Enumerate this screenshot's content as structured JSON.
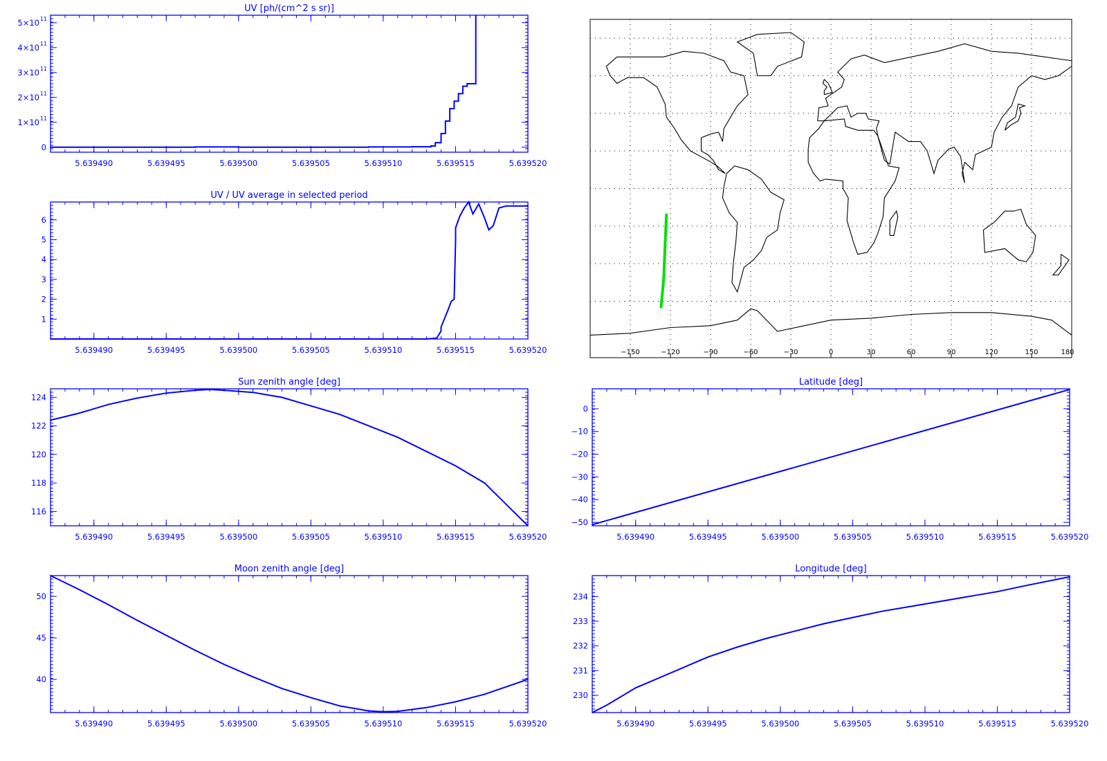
{
  "colors": {
    "plot": "#0000ff",
    "map": "#000000",
    "track": "#00e000",
    "background": "#ffffff"
  },
  "x_tick_labels": [
    "5.639490",
    "5.639495",
    "5.639500",
    "5.639505",
    "5.639510",
    "5.639515",
    "5.639520"
  ],
  "chart_data": [
    {
      "id": "uv",
      "type": "line",
      "title": "UV [ph/(cm^2 s sr)]",
      "xlabel": "",
      "ylabel": "",
      "xlim": [
        5.639487,
        5.63952
      ],
      "ylim": [
        -20000000000.0,
        530000000000.0
      ],
      "yticks": [
        {
          "v": 0,
          "label": "0"
        },
        {
          "v": 100000000000.0,
          "label": "1×10",
          "exp": "11"
        },
        {
          "v": 200000000000.0,
          "label": "2×10",
          "exp": "11"
        },
        {
          "v": 300000000000.0,
          "label": "3×10",
          "exp": "11"
        },
        {
          "v": 400000000000.0,
          "label": "4×10",
          "exp": "11"
        },
        {
          "v": 500000000000.0,
          "label": "5×10",
          "exp": "11"
        }
      ],
      "series": [
        {
          "step": true,
          "points": [
            [
              5.639487,
              0
            ],
            [
              5.639497,
              1000000000.0
            ],
            [
              5.6395,
              0
            ],
            [
              5.639509,
              1000000000.0
            ],
            [
              5.639512,
              2000000000.0
            ],
            [
              5.6395133,
              5000000000.0
            ],
            [
              5.6395136,
              18000000000.0
            ],
            [
              5.639514,
              55000000000.0
            ],
            [
              5.6395143,
              105000000000.0
            ],
            [
              5.6395146,
              155000000000.0
            ],
            [
              5.6395149,
              185000000000.0
            ],
            [
              5.6395152,
              215000000000.0
            ],
            [
              5.6395155,
              245000000000.0
            ],
            [
              5.6395158,
              255000000000.0
            ],
            [
              5.6395164,
              530000000000.0
            ]
          ]
        }
      ]
    },
    {
      "id": "uv-ratio",
      "type": "line",
      "title": "UV / UV average in selected period",
      "xlabel": "",
      "ylabel": "",
      "xlim": [
        5.639487,
        5.63952
      ],
      "ylim": [
        0,
        6.9
      ],
      "yticks": [
        {
          "v": 1,
          "label": "1"
        },
        {
          "v": 2,
          "label": "2"
        },
        {
          "v": 3,
          "label": "3"
        },
        {
          "v": 4,
          "label": "4"
        },
        {
          "v": 5,
          "label": "5"
        },
        {
          "v": 6,
          "label": "6"
        }
      ],
      "series": [
        {
          "step": false,
          "points": [
            [
              5.639487,
              0
            ],
            [
              5.639513,
              0
            ],
            [
              5.6395137,
              0.05
            ],
            [
              5.639514,
              0.4
            ],
            [
              5.639514,
              0.6
            ],
            [
              5.6395145,
              1.5
            ],
            [
              5.6395147,
              1.9
            ],
            [
              5.6395149,
              2.0
            ],
            [
              5.639515,
              5.0
            ],
            [
              5.639515,
              5.6
            ],
            [
              5.6395153,
              6.2
            ],
            [
              5.6395156,
              6.6
            ],
            [
              5.6395159,
              6.9
            ],
            [
              5.6395162,
              6.3
            ],
            [
              5.6395166,
              6.8
            ],
            [
              5.639517,
              6.1
            ],
            [
              5.6395173,
              5.5
            ],
            [
              5.6395176,
              5.7
            ],
            [
              5.639518,
              6.6
            ],
            [
              5.6395185,
              6.7
            ],
            [
              5.63952,
              6.7
            ]
          ]
        }
      ]
    },
    {
      "id": "sun-zenith",
      "type": "line",
      "title": "Sun zenith angle [deg]",
      "xlabel": "",
      "ylabel": "",
      "xlim": [
        5.639487,
        5.63952
      ],
      "ylim": [
        115.0,
        124.6
      ],
      "yticks": [
        {
          "v": 116,
          "label": "116"
        },
        {
          "v": 118,
          "label": "118"
        },
        {
          "v": 120,
          "label": "120"
        },
        {
          "v": 122,
          "label": "122"
        },
        {
          "v": 124,
          "label": "124"
        }
      ],
      "series": [
        {
          "step": false,
          "points": [
            [
              5.639487,
              122.4
            ],
            [
              5.639489,
              122.9
            ],
            [
              5.639491,
              123.5
            ],
            [
              5.639493,
              123.95
            ],
            [
              5.639495,
              124.3
            ],
            [
              5.639497,
              124.5
            ],
            [
              5.639498,
              124.55
            ],
            [
              5.639499,
              124.5
            ],
            [
              5.639501,
              124.35
            ],
            [
              5.639503,
              124.0
            ],
            [
              5.639505,
              123.4
            ],
            [
              5.639507,
              122.8
            ],
            [
              5.639509,
              122.0
            ],
            [
              5.639511,
              121.2
            ],
            [
              5.639513,
              120.2
            ],
            [
              5.639515,
              119.2
            ],
            [
              5.639517,
              118.0
            ],
            [
              5.639519,
              116.0
            ],
            [
              5.63952,
              115.0
            ]
          ]
        }
      ]
    },
    {
      "id": "moon-zenith",
      "type": "line",
      "title": "Moon zenith angle [deg]",
      "xlabel": "",
      "ylabel": "",
      "xlim": [
        5.639487,
        5.63952
      ],
      "ylim": [
        36.0,
        52.5
      ],
      "yticks": [
        {
          "v": 40,
          "label": "40"
        },
        {
          "v": 45,
          "label": "45"
        },
        {
          "v": 50,
          "label": "50"
        }
      ],
      "series": [
        {
          "step": false,
          "points": [
            [
              5.639487,
              52.5
            ],
            [
              5.639489,
              50.8
            ],
            [
              5.639491,
              49.0
            ],
            [
              5.639493,
              47.1
            ],
            [
              5.639495,
              45.3
            ],
            [
              5.639497,
              43.5
            ],
            [
              5.639499,
              41.8
            ],
            [
              5.639501,
              40.3
            ],
            [
              5.639503,
              38.9
            ],
            [
              5.639505,
              37.8
            ],
            [
              5.639507,
              36.8
            ],
            [
              5.639509,
              36.2
            ],
            [
              5.63951,
              36.1
            ],
            [
              5.639511,
              36.15
            ],
            [
              5.639513,
              36.6
            ],
            [
              5.639515,
              37.3
            ],
            [
              5.639517,
              38.2
            ],
            [
              5.639519,
              39.4
            ],
            [
              5.63952,
              40.0
            ]
          ]
        }
      ]
    },
    {
      "id": "latitude",
      "type": "line",
      "title": "Latitude [deg]",
      "xlabel": "",
      "ylabel": "",
      "xlim": [
        5.639487,
        5.63952
      ],
      "ylim": [
        -51.5,
        8.8
      ],
      "yticks": [
        {
          "v": -50,
          "label": "−50"
        },
        {
          "v": -40,
          "label": "−40"
        },
        {
          "v": -30,
          "label": "−30"
        },
        {
          "v": -20,
          "label": "−20"
        },
        {
          "v": -10,
          "label": "−10"
        },
        {
          "v": 0,
          "label": "0"
        }
      ],
      "series": [
        {
          "step": false,
          "points": [
            [
              5.639487,
              -51
            ],
            [
              5.63952,
              8.5
            ]
          ]
        }
      ]
    },
    {
      "id": "longitude",
      "type": "line",
      "title": "Longitude [deg]",
      "xlabel": "",
      "ylabel": "",
      "xlim": [
        5.639487,
        5.63952
      ],
      "ylim": [
        229.3,
        234.85
      ],
      "yticks": [
        {
          "v": 230,
          "label": "230"
        },
        {
          "v": 231,
          "label": "231"
        },
        {
          "v": 232,
          "label": "232"
        },
        {
          "v": 233,
          "label": "233"
        },
        {
          "v": 234,
          "label": "234"
        }
      ],
      "series": [
        {
          "step": false,
          "points": [
            [
              5.639487,
              229.3
            ],
            [
              5.639488,
              229.6
            ],
            [
              5.639489,
              229.95
            ],
            [
              5.63949,
              230.3
            ],
            [
              5.639491,
              230.55
            ],
            [
              5.639492,
              230.8
            ],
            [
              5.639493,
              231.05
            ],
            [
              5.639494,
              231.3
            ],
            [
              5.639495,
              231.55
            ],
            [
              5.639497,
              231.95
            ],
            [
              5.639499,
              232.3
            ],
            [
              5.639501,
              232.6
            ],
            [
              5.639503,
              232.9
            ],
            [
              5.639505,
              233.15
            ],
            [
              5.639507,
              233.4
            ],
            [
              5.639509,
              233.6
            ],
            [
              5.639511,
              233.8
            ],
            [
              5.639513,
              234.0
            ],
            [
              5.639515,
              234.2
            ],
            [
              5.639517,
              234.45
            ],
            [
              5.63952,
              234.8
            ]
          ]
        }
      ]
    }
  ],
  "map": {
    "type": "map",
    "xticks": [
      "−150",
      "−120",
      "−90",
      "−60",
      "−30",
      "0",
      "30",
      "60",
      "90",
      "120",
      "150",
      "180"
    ],
    "xlim": [
      -180,
      180
    ],
    "ylim": [
      -90,
      90
    ],
    "grid": true,
    "track": [
      [
        -123,
        -14
      ],
      [
        -124,
        -30
      ],
      [
        -125,
        -48
      ],
      [
        -127,
        -63
      ]
    ]
  }
}
